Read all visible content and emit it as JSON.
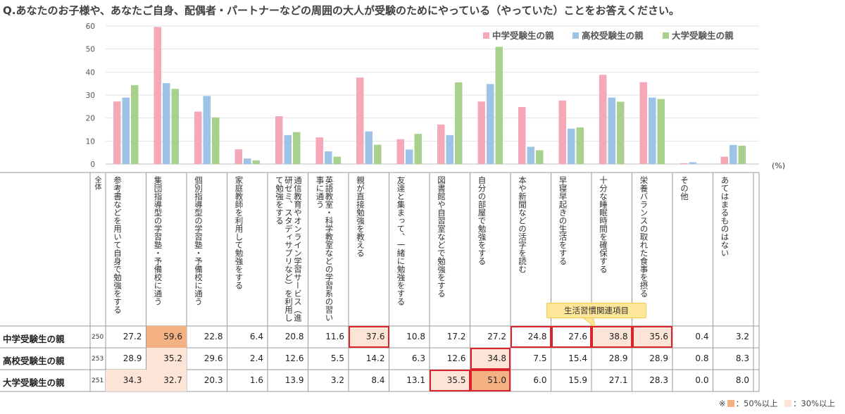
{
  "title": "Q.あなたのお子様や、あなたご自身、配偶者・パートナーなどの周囲の大人が受験のためにやっている（やっていた）ことをお答えください。",
  "colors": {
    "middle": "#f4a8b8",
    "high": "#9dc3e6",
    "univ": "#a9d18e",
    "level50": "#f4b183",
    "level30": "#fce4d6",
    "highlight": "#d9232d",
    "callout": "#ffe699"
  },
  "unit_label": "(%)",
  "total_label": "全体",
  "callout": "生活習慣関連項目",
  "footnote": {
    "prefix": "※",
    "level50": "：50%以上",
    "level30": "：30%以上"
  },
  "chart_data": {
    "type": "bar",
    "ylim": [
      0,
      60
    ],
    "yticks": [
      "0",
      "10",
      "20",
      "30",
      "40",
      "50",
      "60"
    ],
    "categories": [
      "参考書などを用いて自身で勉強をする",
      "集団指導型の学習塾・予備校に通う",
      "個別指導型の学習塾・予備校に通う",
      "家庭教師を利用して勉強をする",
      "通信教育やオンライン学習サービス（進研ゼミ、スタディサプリなど）を利用して勉強をする",
      "英語教室・科学教室などの学習系の習い事に通う",
      "親が直接勉強を教える",
      "友達と集まって、一緒に勉強をする",
      "図書館や自習室などで勉強をする",
      "自分の部屋で勉強をする",
      "本や新聞などの活字を読む",
      "早寝早起きの生活をする",
      "十分な睡眠時間を確保する",
      "栄養バランスの取れた食事を摂る",
      "その他",
      "あてはまるものはない"
    ],
    "series": [
      {
        "name": "中学受験生の親",
        "n": "250",
        "colorKey": "middle",
        "values": [
          27.2,
          59.6,
          22.8,
          6.4,
          20.8,
          11.6,
          37.6,
          10.8,
          17.2,
          27.2,
          24.8,
          27.6,
          38.8,
          35.6,
          0.4,
          3.2
        ],
        "labels": [
          "27.2",
          "59.6",
          "22.8",
          "6.4",
          "20.8",
          "11.6",
          "37.6",
          "10.8",
          "17.2",
          "27.2",
          "24.8",
          "27.6",
          "38.8",
          "35.6",
          "0.4",
          "3.2"
        ],
        "highlighted": [
          6,
          10,
          11,
          12,
          13
        ]
      },
      {
        "name": "高校受験生の親",
        "n": "253",
        "colorKey": "high",
        "values": [
          28.9,
          35.2,
          29.6,
          2.4,
          12.6,
          5.5,
          14.2,
          6.3,
          12.6,
          34.8,
          7.5,
          15.4,
          28.9,
          28.9,
          0.8,
          8.3
        ],
        "labels": [
          "28.9",
          "35.2",
          "29.6",
          "2.4",
          "12.6",
          "5.5",
          "14.2",
          "6.3",
          "12.6",
          "34.8",
          "7.5",
          "15.4",
          "28.9",
          "28.9",
          "0.8",
          "8.3"
        ],
        "highlighted": [
          9
        ]
      },
      {
        "name": "大学受験生の親",
        "n": "251",
        "colorKey": "univ",
        "values": [
          34.3,
          32.7,
          20.3,
          1.6,
          13.9,
          3.2,
          8.4,
          13.1,
          35.5,
          51.0,
          6.0,
          15.9,
          27.1,
          28.3,
          0.0,
          8.0
        ],
        "labels": [
          "34.3",
          "32.7",
          "20.3",
          "1.6",
          "13.9",
          "3.2",
          "8.4",
          "13.1",
          "35.5",
          "51.0",
          "6.0",
          "15.9",
          "27.1",
          "28.3",
          "0.0",
          "8.0"
        ],
        "highlighted": [
          8,
          9
        ]
      }
    ]
  }
}
